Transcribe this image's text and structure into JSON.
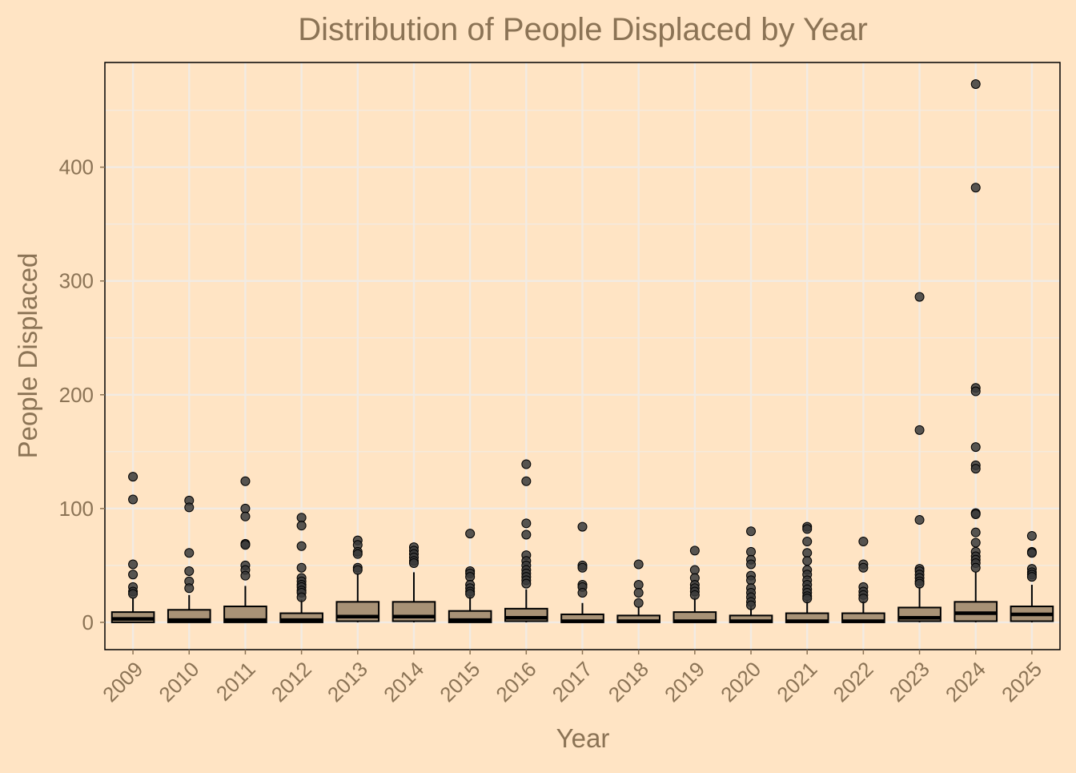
{
  "colors": {
    "background": "#FFE4C4",
    "text": "#8B7355",
    "grid": "#F2EBE3",
    "box_fill": "#A89276",
    "outline": "#000000",
    "outlier": "#3A3A3A"
  },
  "chart_data": {
    "type": "boxplot",
    "title": "Distribution of People Displaced by Year",
    "xlabel": "Year",
    "ylabel": "People Displaced",
    "ylim": [
      -24,
      492
    ],
    "yticks": [
      0,
      100,
      200,
      300,
      400
    ],
    "grid": true,
    "categories": [
      "2009",
      "2010",
      "2011",
      "2012",
      "2013",
      "2014",
      "2015",
      "2016",
      "2017",
      "2018",
      "2019",
      "2020",
      "2021",
      "2022",
      "2023",
      "2024",
      "2025"
    ],
    "boxes": [
      {
        "year": "2009",
        "min": 0,
        "q1": 0,
        "median": 3,
        "q3": 9,
        "max": 21,
        "outliers": [
          128,
          108,
          51,
          42,
          31,
          27,
          25
        ]
      },
      {
        "year": "2010",
        "min": 0,
        "q1": 0,
        "median": 2,
        "q3": 11,
        "max": 24,
        "outliers": [
          107,
          101,
          61,
          45,
          36,
          30
        ]
      },
      {
        "year": "2011",
        "min": 0,
        "q1": 0,
        "median": 2,
        "q3": 14,
        "max": 32,
        "outliers": [
          124,
          100,
          93,
          69,
          68,
          50,
          46,
          41
        ]
      },
      {
        "year": "2012",
        "min": 0,
        "q1": 0,
        "median": 2,
        "q3": 8,
        "max": 20,
        "outliers": [
          92,
          85,
          67,
          48,
          39,
          36,
          33,
          31,
          28,
          26,
          22
        ]
      },
      {
        "year": "2013",
        "min": 0,
        "q1": 1,
        "median": 5,
        "q3": 18,
        "max": 43,
        "outliers": [
          72,
          68,
          62,
          60,
          48,
          46
        ]
      },
      {
        "year": "2014",
        "min": 0,
        "q1": 1,
        "median": 5,
        "q3": 18,
        "max": 44,
        "outliers": [
          66,
          63,
          60,
          57,
          54,
          52
        ]
      },
      {
        "year": "2015",
        "min": 0,
        "q1": 0,
        "median": 2,
        "q3": 10,
        "max": 24,
        "outliers": [
          78,
          45,
          43,
          40,
          33,
          30,
          27,
          25
        ]
      },
      {
        "year": "2016",
        "min": 0,
        "q1": 1,
        "median": 4,
        "q3": 12,
        "max": 29,
        "outliers": [
          139,
          124,
          87,
          77,
          59,
          54,
          50,
          46,
          43,
          40,
          37,
          34
        ]
      },
      {
        "year": "2017",
        "min": 0,
        "q1": 0,
        "median": 1,
        "q3": 7,
        "max": 17,
        "outliers": [
          84,
          50,
          48,
          33,
          31,
          26
        ]
      },
      {
        "year": "2018",
        "min": 0,
        "q1": 0,
        "median": 1,
        "q3": 6,
        "max": 14,
        "outliers": [
          51,
          33,
          26,
          17
        ]
      },
      {
        "year": "2019",
        "min": 0,
        "q1": 0,
        "median": 1,
        "q3": 9,
        "max": 22,
        "outliers": [
          63,
          46,
          39,
          33,
          30,
          27,
          24
        ]
      },
      {
        "year": "2020",
        "min": 0,
        "q1": 0,
        "median": 1,
        "q3": 6,
        "max": 14,
        "outliers": [
          80,
          62,
          55,
          51,
          41,
          37,
          30,
          26,
          22,
          18,
          15
        ]
      },
      {
        "year": "2021",
        "min": 0,
        "q1": 0,
        "median": 1,
        "q3": 8,
        "max": 20,
        "outliers": [
          84,
          82,
          71,
          61,
          54,
          46,
          42,
          37,
          33,
          29,
          26,
          23,
          21
        ]
      },
      {
        "year": "2022",
        "min": 0,
        "q1": 0,
        "median": 1,
        "q3": 8,
        "max": 19,
        "outliers": [
          71,
          51,
          48,
          31,
          27,
          24,
          21
        ]
      },
      {
        "year": "2023",
        "min": 0,
        "q1": 1,
        "median": 4,
        "q3": 13,
        "max": 31,
        "outliers": [
          286,
          169,
          90,
          47,
          45,
          42,
          39,
          36,
          34
        ]
      },
      {
        "year": "2024",
        "min": 0,
        "q1": 1,
        "median": 8,
        "q3": 18,
        "max": 44,
        "outliers": [
          473,
          382,
          206,
          203,
          154,
          138,
          135,
          96,
          95,
          79,
          70,
          62,
          58,
          55,
          52,
          48
        ]
      },
      {
        "year": "2025",
        "min": 0,
        "q1": 1,
        "median": 7,
        "q3": 14,
        "max": 33,
        "outliers": [
          76,
          62,
          61,
          47,
          44,
          42,
          40
        ]
      }
    ]
  }
}
